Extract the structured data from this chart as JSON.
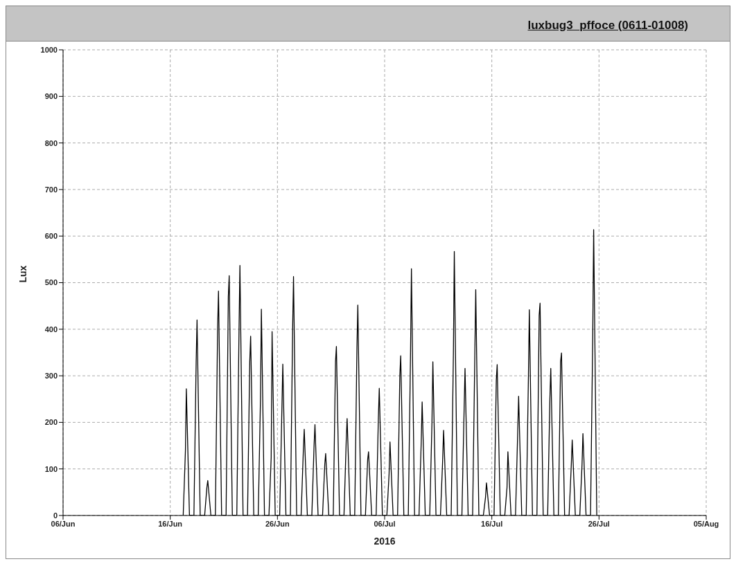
{
  "chart_data": {
    "type": "line",
    "title": "luxbug3_pffoce (0611-01008)",
    "xlabel": "2016",
    "ylabel": "Lux",
    "xlim": [
      "2016-06-06",
      "2016-08-05"
    ],
    "xticks": [
      {
        "value": "2016-06-06",
        "label": "06/Jun"
      },
      {
        "value": "2016-06-16",
        "label": "16/Jun"
      },
      {
        "value": "2016-06-26",
        "label": "26/Jun"
      },
      {
        "value": "2016-07-06",
        "label": "06/Jul"
      },
      {
        "value": "2016-07-16",
        "label": "16/Jul"
      },
      {
        "value": "2016-07-26",
        "label": "26/Jul"
      },
      {
        "value": "2016-08-05",
        "label": "05/Aug"
      }
    ],
    "ylim": [
      0,
      1000
    ],
    "yticks": [
      0,
      100,
      200,
      300,
      400,
      500,
      600,
      700,
      800,
      900,
      1000
    ],
    "grid": true,
    "legend": false,
    "marker": "none",
    "line_style": "solid",
    "series": [
      {
        "color": "#000000",
        "x": [
          "2016-06-17T05:00",
          "2016-06-17T10:00",
          "2016-06-17T12:00",
          "2016-06-17T19:00",
          "2016-06-18T05:00",
          "2016-06-18T10:00",
          "2016-06-18T12:00",
          "2016-06-18T19:00",
          "2016-06-19T05:00",
          "2016-06-19T10:00",
          "2016-06-19T12:00",
          "2016-06-19T19:00",
          "2016-06-20T05:00",
          "2016-06-20T10:00",
          "2016-06-20T12:00",
          "2016-06-20T19:00",
          "2016-06-21T05:00",
          "2016-06-21T10:00",
          "2016-06-21T12:00",
          "2016-06-21T19:00",
          "2016-06-22T05:00",
          "2016-06-22T10:00",
          "2016-06-22T12:00",
          "2016-06-22T19:00",
          "2016-06-23T05:00",
          "2016-06-23T10:00",
          "2016-06-23T12:00",
          "2016-06-23T19:00",
          "2016-06-24T05:00",
          "2016-06-24T10:00",
          "2016-06-24T12:00",
          "2016-06-24T19:00",
          "2016-06-25T05:00",
          "2016-06-25T10:00",
          "2016-06-25T12:00",
          "2016-06-25T19:00",
          "2016-06-26T05:00",
          "2016-06-26T10:00",
          "2016-06-26T12:00",
          "2016-06-26T19:00",
          "2016-06-27T05:00",
          "2016-06-27T10:00",
          "2016-06-27T12:00",
          "2016-06-27T19:00",
          "2016-06-28T05:00",
          "2016-06-28T10:00",
          "2016-06-28T12:00",
          "2016-06-28T19:00",
          "2016-06-29T05:00",
          "2016-06-29T10:00",
          "2016-06-29T12:00",
          "2016-06-29T19:00",
          "2016-06-30T05:00",
          "2016-06-30T10:00",
          "2016-06-30T12:00",
          "2016-06-30T19:00",
          "2016-07-01T05:00",
          "2016-07-01T10:00",
          "2016-07-01T12:00",
          "2016-07-01T19:00",
          "2016-07-02T05:00",
          "2016-07-02T10:00",
          "2016-07-02T12:00",
          "2016-07-02T19:00",
          "2016-07-03T05:00",
          "2016-07-03T10:00",
          "2016-07-03T12:00",
          "2016-07-03T19:00",
          "2016-07-04T05:00",
          "2016-07-04T10:00",
          "2016-07-04T12:00",
          "2016-07-04T19:00",
          "2016-07-05T05:00",
          "2016-07-05T10:00",
          "2016-07-05T12:00",
          "2016-07-05T19:00",
          "2016-07-06T05:00",
          "2016-07-06T10:00",
          "2016-07-06T12:00",
          "2016-07-06T19:00",
          "2016-07-07T05:00",
          "2016-07-07T10:00",
          "2016-07-07T12:00",
          "2016-07-07T19:00",
          "2016-07-08T05:00",
          "2016-07-08T10:00",
          "2016-07-08T12:00",
          "2016-07-08T19:00",
          "2016-07-09T05:00",
          "2016-07-09T10:00",
          "2016-07-09T12:00",
          "2016-07-09T19:00",
          "2016-07-10T05:00",
          "2016-07-10T10:00",
          "2016-07-10T12:00",
          "2016-07-10T19:00",
          "2016-07-11T05:00",
          "2016-07-11T10:00",
          "2016-07-11T12:00",
          "2016-07-11T19:00",
          "2016-07-12T05:00",
          "2016-07-12T10:00",
          "2016-07-12T12:00",
          "2016-07-12T19:00",
          "2016-07-13T05:00",
          "2016-07-13T10:00",
          "2016-07-13T12:00",
          "2016-07-13T19:00",
          "2016-07-14T05:00",
          "2016-07-14T10:00",
          "2016-07-14T12:00",
          "2016-07-14T19:00",
          "2016-07-15T05:00",
          "2016-07-15T10:00",
          "2016-07-15T12:00",
          "2016-07-15T19:00",
          "2016-07-16T05:00",
          "2016-07-16T10:00",
          "2016-07-16T12:00",
          "2016-07-16T19:00",
          "2016-07-17T05:00",
          "2016-07-17T10:00",
          "2016-07-17T12:00",
          "2016-07-17T19:00",
          "2016-07-18T05:00",
          "2016-07-18T10:00",
          "2016-07-18T12:00",
          "2016-07-18T19:00",
          "2016-07-19T05:00",
          "2016-07-19T10:00",
          "2016-07-19T12:00",
          "2016-07-19T19:00",
          "2016-07-20T05:00",
          "2016-07-20T10:00",
          "2016-07-20T12:00",
          "2016-07-20T19:00",
          "2016-07-21T05:00",
          "2016-07-21T10:00",
          "2016-07-21T12:00",
          "2016-07-21T19:00",
          "2016-07-22T05:00",
          "2016-07-22T10:00",
          "2016-07-22T12:00",
          "2016-07-22T19:00",
          "2016-07-23T05:00",
          "2016-07-23T10:00",
          "2016-07-23T12:00",
          "2016-07-23T19:00",
          "2016-07-24T05:00",
          "2016-07-24T10:00",
          "2016-07-24T12:00",
          "2016-07-24T19:00",
          "2016-07-25T05:00",
          "2016-07-25T10:00",
          "2016-07-25T12:00",
          "2016-07-25T19:00"
        ],
        "values": [
          0,
          140,
          272,
          0,
          0,
          330,
          420,
          0,
          0,
          60,
          75,
          0,
          0,
          400,
          482,
          0,
          0,
          470,
          515,
          0,
          0,
          400,
          537,
          0,
          0,
          330,
          385,
          0,
          0,
          250,
          443,
          0,
          0,
          125,
          395,
          0,
          0,
          230,
          325,
          0,
          0,
          400,
          513,
          0,
          0,
          140,
          185,
          0,
          0,
          150,
          195,
          0,
          0,
          110,
          133,
          0,
          0,
          330,
          363,
          0,
          0,
          160,
          208,
          0,
          0,
          360,
          452,
          0,
          0,
          120,
          137,
          0,
          0,
          210,
          273,
          0,
          0,
          90,
          158,
          0,
          0,
          300,
          343,
          0,
          0,
          350,
          530,
          0,
          0,
          160,
          244,
          0,
          0,
          200,
          330,
          0,
          0,
          120,
          183,
          0,
          0,
          350,
          567,
          0,
          0,
          230,
          316,
          0,
          0,
          350,
          485,
          0,
          0,
          40,
          70,
          0,
          0,
          290,
          324,
          0,
          0,
          60,
          137,
          0,
          0,
          180,
          256,
          0,
          0,
          300,
          442,
          0,
          0,
          430,
          456,
          0,
          0,
          250,
          316,
          0,
          0,
          330,
          349,
          0,
          0,
          110,
          162,
          0,
          0,
          110,
          176,
          0,
          0,
          390,
          614,
          0
        ]
      }
    ]
  }
}
